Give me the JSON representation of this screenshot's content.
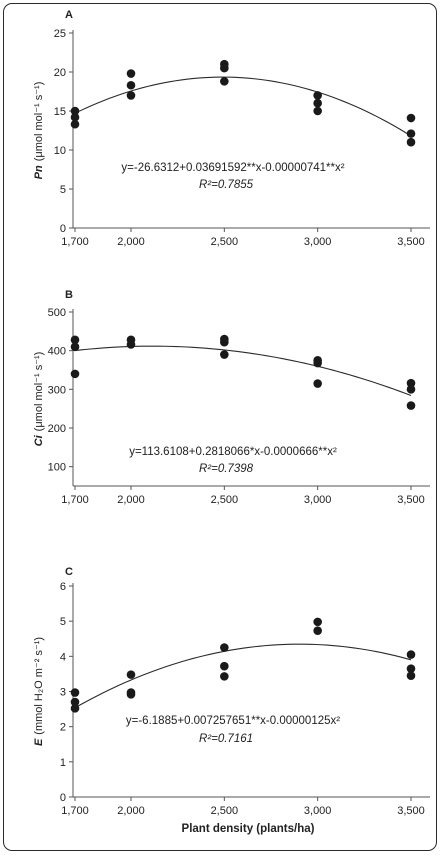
{
  "chart_data": [
    {
      "panel_letter": "A",
      "type": "scatter",
      "ylabel_var": "Pn",
      "ylabel_unit": "(μmol mol⁻¹ s⁻¹)",
      "ylim": [
        0,
        25
      ],
      "yticks": [
        0,
        5,
        10,
        15,
        20,
        25
      ],
      "x_categories": [
        "1,700",
        "2,000",
        "2,500",
        "3,000",
        "3,500"
      ],
      "x_values": [
        1700,
        2000,
        2500,
        3000,
        3500
      ],
      "points": [
        {
          "x": 1700,
          "y": 15.0
        },
        {
          "x": 1700,
          "y": 14.2
        },
        {
          "x": 1700,
          "y": 13.3
        },
        {
          "x": 2000,
          "y": 19.8
        },
        {
          "x": 2000,
          "y": 18.3
        },
        {
          "x": 2000,
          "y": 17.0
        },
        {
          "x": 2500,
          "y": 21.0
        },
        {
          "x": 2500,
          "y": 20.5
        },
        {
          "x": 2500,
          "y": 18.8
        },
        {
          "x": 3000,
          "y": 17.0
        },
        {
          "x": 3000,
          "y": 16.0
        },
        {
          "x": 3000,
          "y": 15.0
        },
        {
          "x": 3500,
          "y": 14.1
        },
        {
          "x": 3500,
          "y": 12.1
        },
        {
          "x": 3500,
          "y": 11.0
        }
      ],
      "fit": {
        "a": -26.6312,
        "b": 0.03691592,
        "c": -7.41e-06
      },
      "equation": "y=-26.6312+0.03691592**x-0.00000741**x²",
      "r2_label": "R²=0.7855",
      "legend_position": "lower-center"
    },
    {
      "panel_letter": "B",
      "type": "scatter",
      "ylabel_var": "Ci",
      "ylabel_unit": "(μmol mol⁻¹ s⁻¹)",
      "ylim": [
        50,
        500
      ],
      "yticks": [
        100,
        200,
        300,
        400,
        500
      ],
      "x_categories": [
        "1,700",
        "2,000",
        "2,500",
        "3,000",
        "3,500"
      ],
      "x_values": [
        1700,
        2000,
        2500,
        3000,
        3500
      ],
      "points": [
        {
          "x": 1700,
          "y": 428
        },
        {
          "x": 1700,
          "y": 410
        },
        {
          "x": 1700,
          "y": 340
        },
        {
          "x": 2000,
          "y": 428
        },
        {
          "x": 2000,
          "y": 416
        },
        {
          "x": 2500,
          "y": 430
        },
        {
          "x": 2500,
          "y": 422
        },
        {
          "x": 2500,
          "y": 390
        },
        {
          "x": 3000,
          "y": 375
        },
        {
          "x": 3000,
          "y": 368
        },
        {
          "x": 3000,
          "y": 315
        },
        {
          "x": 3500,
          "y": 316
        },
        {
          "x": 3500,
          "y": 300
        },
        {
          "x": 3500,
          "y": 258
        }
      ],
      "fit": {
        "a": 113.6108,
        "b": 0.2818066,
        "c": -6.66e-05
      },
      "equation": "y=113.6108+0.2818066*x-0.0000666**x²",
      "r2_label": "R²=0.7398",
      "legend_position": "lower-center"
    },
    {
      "panel_letter": "C",
      "type": "scatter",
      "ylabel_var": "E",
      "ylabel_unit": "(mmol H₂O m⁻² s⁻¹)",
      "ylim": [
        0,
        6
      ],
      "yticks": [
        0,
        1,
        2,
        3,
        4,
        5,
        6
      ],
      "x_categories": [
        "1,700",
        "2,000",
        "2,500",
        "3,000",
        "3,500"
      ],
      "x_values": [
        1700,
        2000,
        2500,
        3000,
        3500
      ],
      "points": [
        {
          "x": 1700,
          "y": 2.97
        },
        {
          "x": 1700,
          "y": 2.7
        },
        {
          "x": 1700,
          "y": 2.52
        },
        {
          "x": 2000,
          "y": 3.48
        },
        {
          "x": 2000,
          "y": 2.97
        },
        {
          "x": 2000,
          "y": 2.92
        },
        {
          "x": 2500,
          "y": 4.25
        },
        {
          "x": 2500,
          "y": 3.72
        },
        {
          "x": 2500,
          "y": 3.43
        },
        {
          "x": 3000,
          "y": 4.98
        },
        {
          "x": 3000,
          "y": 4.73
        },
        {
          "x": 3500,
          "y": 4.05
        },
        {
          "x": 3500,
          "y": 3.65
        },
        {
          "x": 3500,
          "y": 3.45
        }
      ],
      "fit": {
        "a": -6.1885,
        "b": 0.007257651,
        "c": -1.25e-06
      },
      "equation": "y=-6.1885+0.007257651**x-0.00000125x²",
      "r2_label": "R²=0.7161",
      "legend_position": "lower-center"
    }
  ],
  "xlabel": "Plant density (plants/ha)",
  "colors": {
    "points": "#1a1a1a",
    "curve": "#2b2b2b",
    "axes": "#555555",
    "frame": "#2a2a2a"
  }
}
